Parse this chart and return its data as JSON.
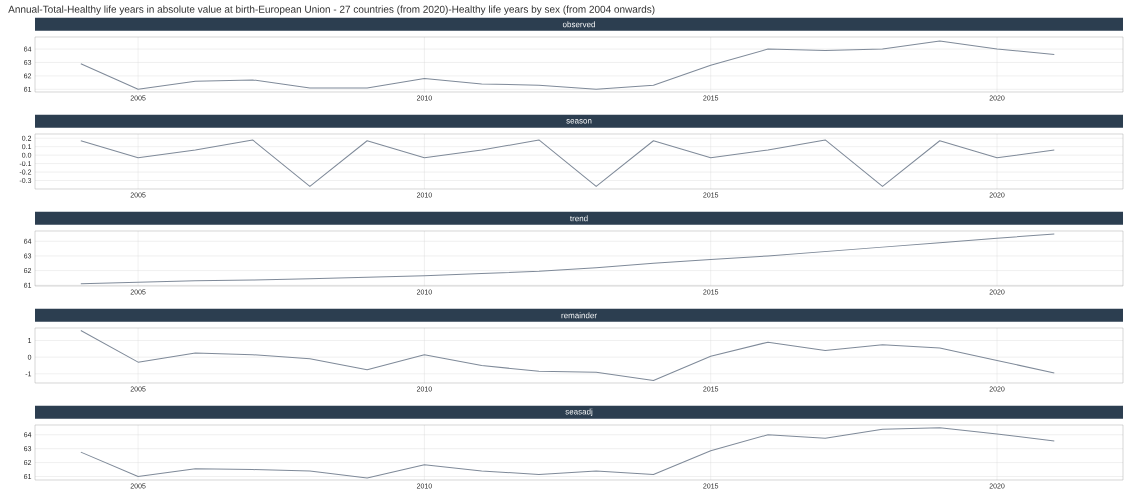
{
  "chart_data": [
    {
      "type": "line",
      "title": "observed",
      "annotations": [
        "Annual-Total-Healthy life years in absolute value at birth-European Union - 27 countries (from 2020)-Healthy life years by sex (from 2004 onwards)"
      ],
      "x": [
        2004,
        2005,
        2006,
        2007,
        2008,
        2009,
        2010,
        2011,
        2012,
        2013,
        2014,
        2015,
        2016,
        2017,
        2018,
        2019,
        2020,
        2021
      ],
      "values": [
        62.9,
        61.0,
        61.6,
        61.7,
        61.1,
        61.1,
        61.8,
        61.4,
        61.3,
        61.0,
        61.3,
        62.8,
        64.0,
        63.9,
        64.0,
        64.6,
        64.0,
        63.6
      ],
      "color": "#7f8a99",
      "xlim": [
        2003.2,
        2022.2
      ],
      "ylim": [
        60.8,
        64.9
      ],
      "xticks": [
        2005,
        2010,
        2015,
        2020
      ],
      "yticks": [
        61,
        62,
        63,
        64
      ],
      "grid": true
    },
    {
      "type": "line",
      "title": "season",
      "x": [
        2004,
        2005,
        2006,
        2007,
        2008,
        2009,
        2010,
        2011,
        2012,
        2013,
        2014,
        2015,
        2016,
        2017,
        2018,
        2019,
        2020,
        2021
      ],
      "values": [
        0.17,
        -0.03,
        0.06,
        0.18,
        -0.37,
        0.17,
        -0.03,
        0.06,
        0.18,
        -0.37,
        0.17,
        -0.03,
        0.06,
        0.18,
        -0.37,
        0.17,
        -0.03,
        0.06
      ],
      "color": "#7f8a99",
      "xlim": [
        2003.2,
        2022.2
      ],
      "ylim": [
        -0.4,
        0.25
      ],
      "xticks": [
        2005,
        2010,
        2015,
        2020
      ],
      "yticks": [
        -0.3,
        -0.2,
        -0.1,
        {
          "value": 0,
          "label": "0.0"
        },
        0.1,
        0.2
      ],
      "grid": true
    },
    {
      "type": "line",
      "title": "trend",
      "x": [
        2004,
        2005,
        2006,
        2007,
        2008,
        2009,
        2010,
        2011,
        2012,
        2013,
        2014,
        2015,
        2016,
        2017,
        2018,
        2019,
        2020,
        2021
      ],
      "values": [
        61.1,
        61.2,
        61.3,
        61.35,
        61.45,
        61.55,
        61.65,
        61.8,
        61.95,
        62.2,
        62.5,
        62.75,
        63.0,
        63.3,
        63.6,
        63.9,
        64.2,
        64.5
      ],
      "color": "#7f8a99",
      "xlim": [
        2003.2,
        2022.2
      ],
      "ylim": [
        60.95,
        64.7
      ],
      "xticks": [
        2005,
        2010,
        2015,
        2020
      ],
      "yticks": [
        61,
        62,
        63,
        64
      ],
      "grid": true
    },
    {
      "type": "line",
      "title": "remainder",
      "x": [
        2004,
        2005,
        2006,
        2007,
        2008,
        2009,
        2010,
        2011,
        2012,
        2013,
        2014,
        2015,
        2016,
        2017,
        2018,
        2019,
        2020,
        2021
      ],
      "values": [
        1.6,
        -0.3,
        0.25,
        0.15,
        -0.1,
        -0.75,
        0.15,
        -0.5,
        -0.85,
        -0.9,
        -1.4,
        0.05,
        0.9,
        0.4,
        0.75,
        0.55,
        -0.2,
        -0.95
      ],
      "color": "#7f8a99",
      "xlim": [
        2003.2,
        2022.2
      ],
      "ylim": [
        -1.55,
        1.75
      ],
      "xticks": [
        2005,
        2010,
        2015,
        2020
      ],
      "yticks": [
        -1,
        0,
        1
      ],
      "grid": true
    },
    {
      "type": "line",
      "title": "seasadj",
      "x": [
        2004,
        2005,
        2006,
        2007,
        2008,
        2009,
        2010,
        2011,
        2012,
        2013,
        2014,
        2015,
        2016,
        2017,
        2018,
        2019,
        2020,
        2021
      ],
      "values": [
        62.75,
        61.0,
        61.55,
        61.5,
        61.4,
        60.9,
        61.85,
        61.4,
        61.15,
        61.4,
        61.15,
        62.85,
        64.0,
        63.75,
        64.4,
        64.5,
        64.05,
        63.55
      ],
      "color": "#7f8a99",
      "xlim": [
        2003.2,
        2022.2
      ],
      "ylim": [
        60.75,
        64.7
      ],
      "xticks": [
        2005,
        2010,
        2015,
        2020
      ],
      "yticks": [
        61,
        62,
        63,
        64
      ],
      "grid": true
    }
  ]
}
